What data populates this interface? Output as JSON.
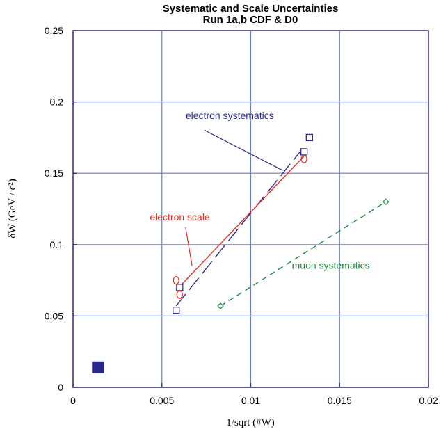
{
  "chart_data": {
    "type": "scatter",
    "title": "Systematic and Scale Uncertainties",
    "subtitle": "Run 1a,b CDF & D0",
    "xlabel": "1/sqrt (#W)",
    "ylabel": "δW (GeV / c²)",
    "xlim": [
      0,
      0.02
    ],
    "ylim": [
      0,
      0.25
    ],
    "x_ticks": [
      "0",
      "0.005",
      "0.01",
      "0.015",
      "0.02"
    ],
    "y_ticks": [
      "0",
      "0.05",
      "0.1",
      "0.15",
      "0.2",
      "0.25"
    ],
    "grid": true,
    "colors": {
      "electron_systematics": "#2a2a8c",
      "electron_scale": "#e03020",
      "muon_systematics": "#1a8a3a",
      "grid": "#6f7fbf"
    },
    "series": [
      {
        "name": "electron systematics",
        "marker": "square",
        "x": [
          0.0058,
          0.006,
          0.013,
          0.0133
        ],
        "y": [
          0.054,
          0.07,
          0.165,
          0.175
        ],
        "fit": {
          "style": "dashed",
          "x": [
            0.0058,
            0.0129
          ],
          "y": [
            0.057,
            0.167
          ]
        }
      },
      {
        "name": "electron scale",
        "marker": "circle",
        "x": [
          0.0058,
          0.006,
          0.013
        ],
        "y": [
          0.075,
          0.065,
          0.16
        ],
        "fit": {
          "style": "solid",
          "x": [
            0.0058,
            0.013
          ],
          "y": [
            0.068,
            0.162
          ]
        }
      },
      {
        "name": "muon systematics",
        "marker": "diamond",
        "x": [
          0.0083,
          0.0176
        ],
        "y": [
          0.057,
          0.13
        ],
        "fit": {
          "style": "dashed",
          "x": [
            0.0083,
            0.0176
          ],
          "y": [
            0.057,
            0.13
          ]
        }
      },
      {
        "name": "",
        "marker": "filled-square",
        "x": [
          0.0014
        ],
        "y": [
          0.014
        ]
      }
    ],
    "annotations": [
      {
        "text": "electron systematics",
        "series": 0,
        "x": 0.0113,
        "y": 0.188,
        "arrow_to": [
          0.0118,
          0.152
        ]
      },
      {
        "text": "electron scale",
        "series": 1,
        "x": 0.0077,
        "y": 0.117,
        "arrow_to": [
          0.0067,
          0.085
        ]
      },
      {
        "text": "muon systematics",
        "series": 2,
        "x": 0.0167,
        "y": 0.083
      }
    ]
  }
}
